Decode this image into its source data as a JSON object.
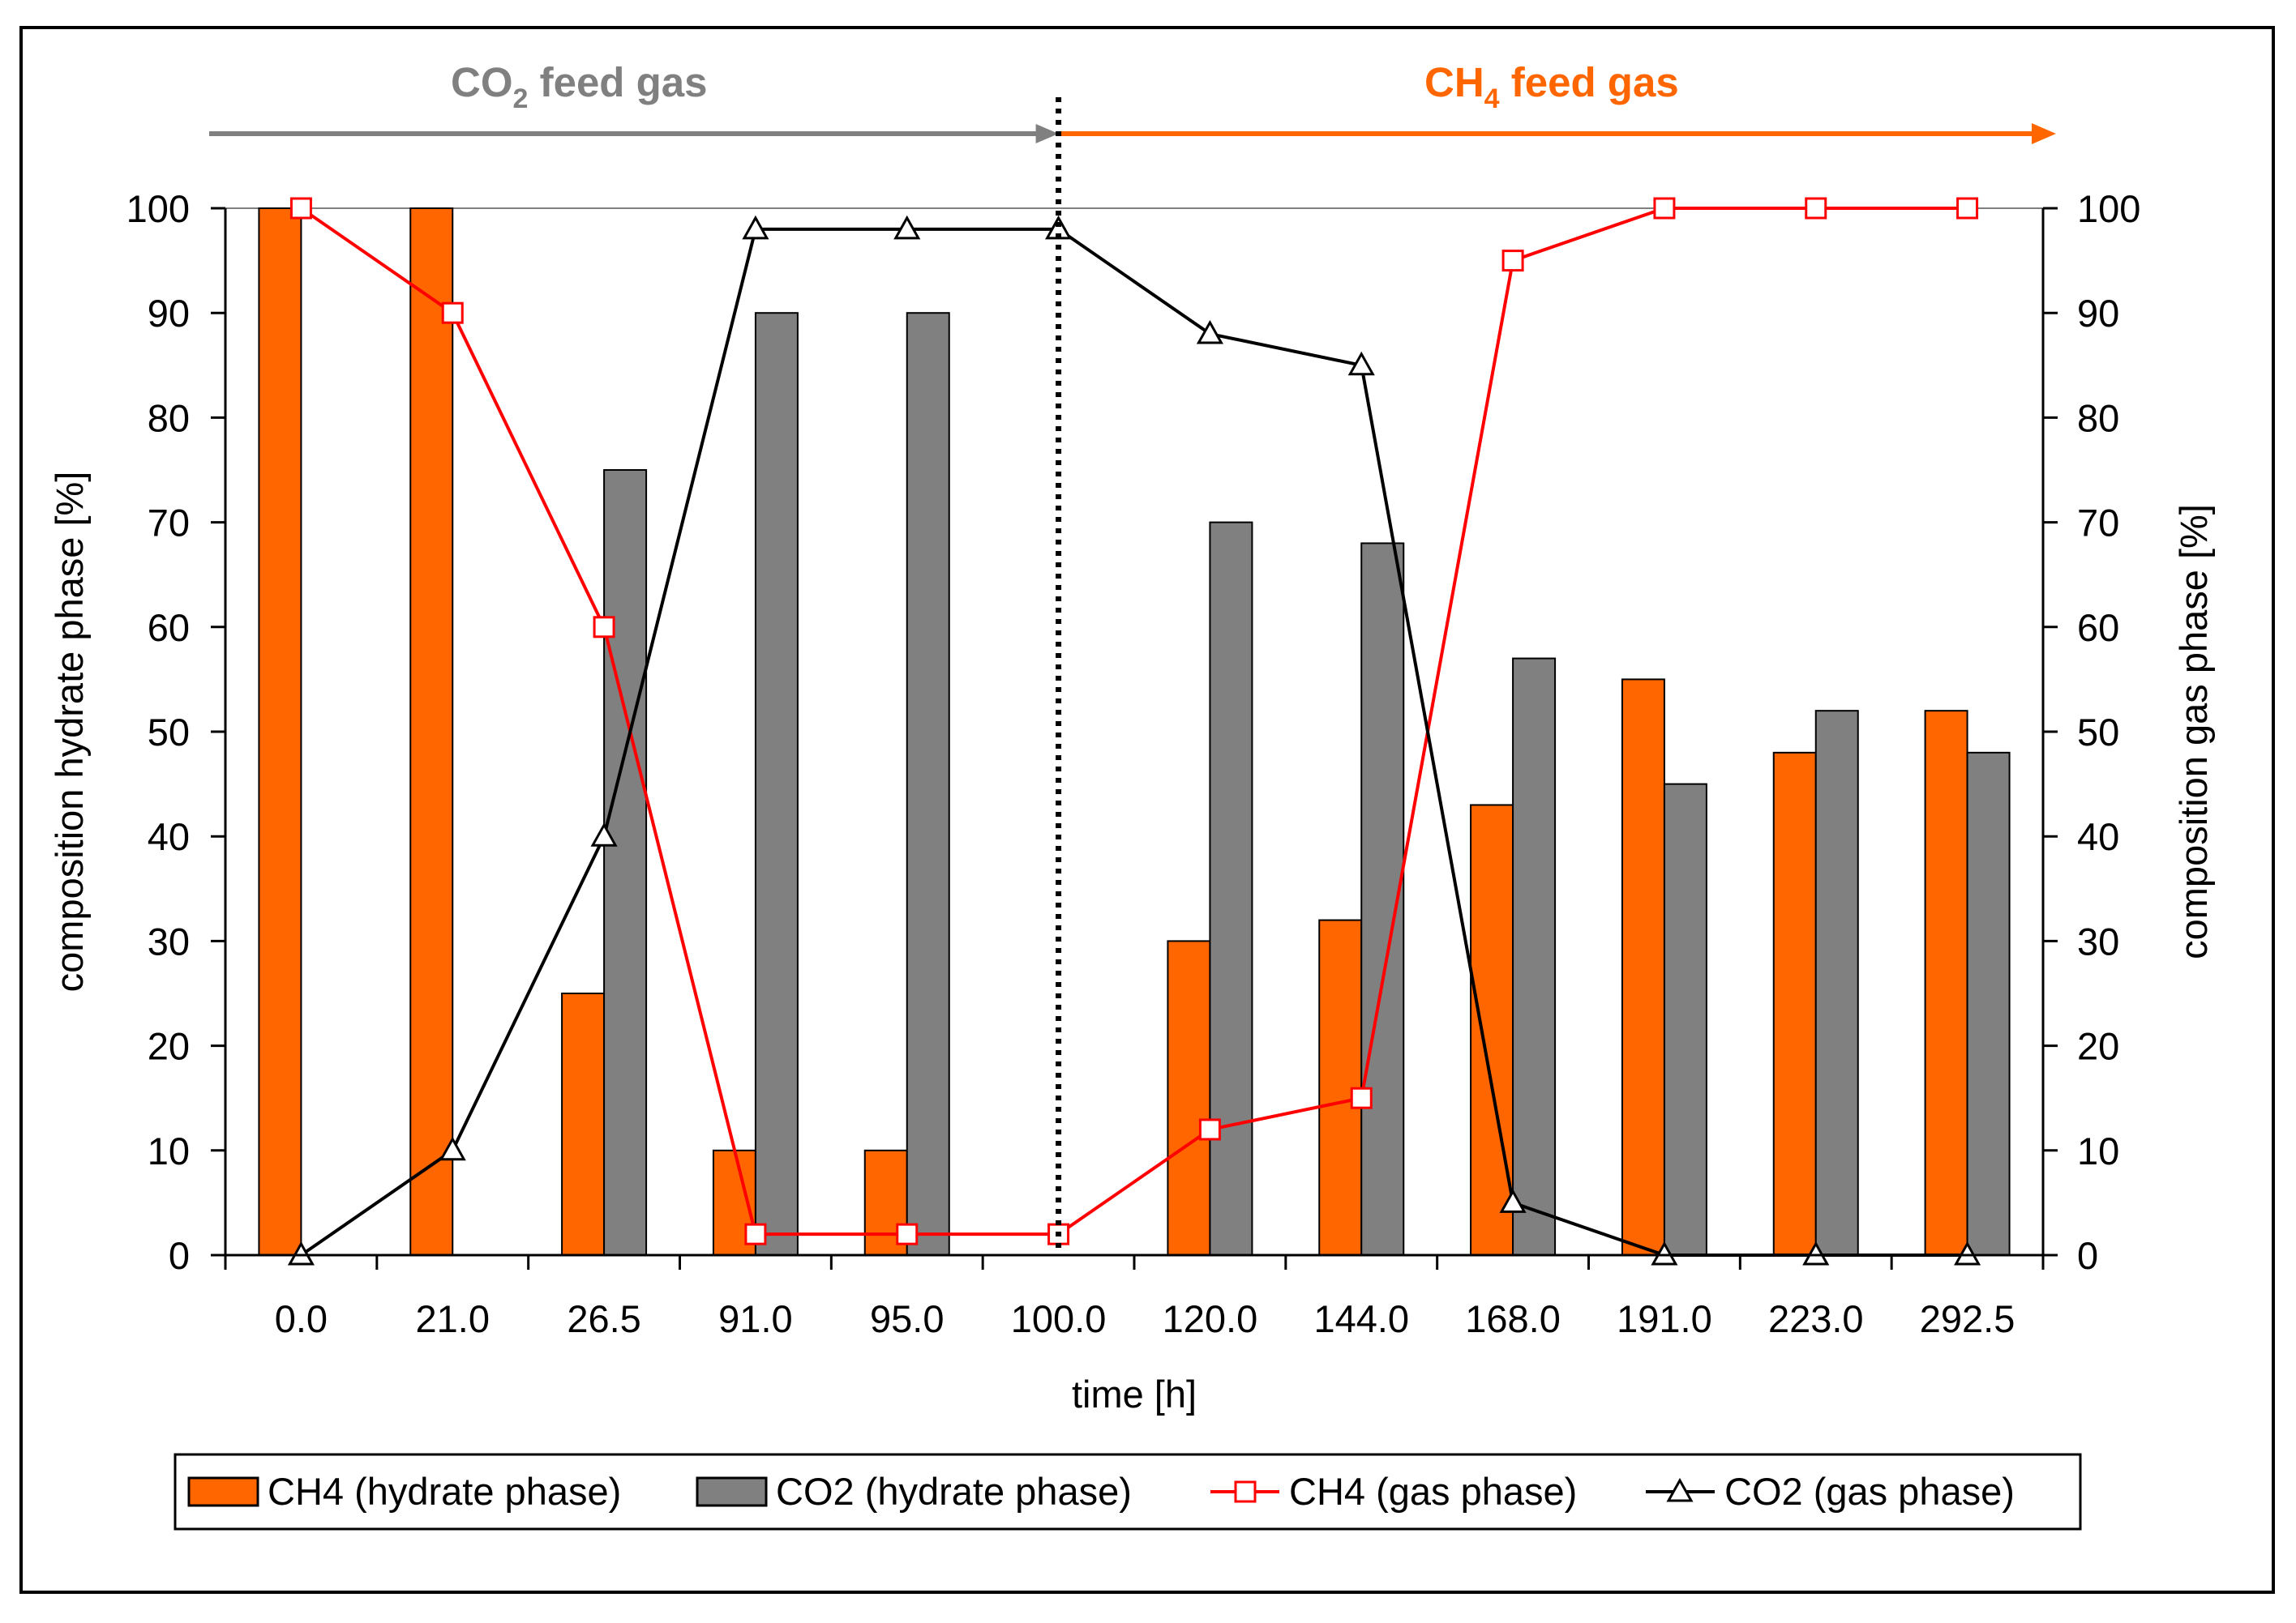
{
  "chart_data": {
    "type": "bar",
    "categories": [
      "0.0",
      "21.0",
      "26.5",
      "91.0",
      "95.0",
      "100.0",
      "120.0",
      "144.0",
      "168.0",
      "191.0",
      "223.0",
      "292.5"
    ],
    "series": [
      {
        "name": "CH4 (hydrate phase)",
        "kind": "bar",
        "axis": "left",
        "color": "#ff6600",
        "values": [
          100,
          100,
          25,
          10,
          10,
          null,
          30,
          32,
          43,
          55,
          48,
          52
        ]
      },
      {
        "name": "CO2 (hydrate phase)",
        "kind": "bar",
        "axis": "left",
        "color": "#808080",
        "values": [
          null,
          null,
          75,
          90,
          90,
          null,
          70,
          68,
          57,
          45,
          52,
          48
        ]
      },
      {
        "name": "CH4 (gas phase)",
        "kind": "line",
        "marker": "square",
        "axis": "right",
        "color": "#ff0000",
        "values": [
          100,
          90,
          60,
          2,
          2,
          2,
          12,
          15,
          95,
          100,
          100,
          100
        ]
      },
      {
        "name": "CO2 (gas phase)",
        "kind": "line",
        "marker": "triangle",
        "axis": "right",
        "color": "#000000",
        "values": [
          0,
          10,
          40,
          98,
          98,
          98,
          88,
          85,
          5,
          0,
          0,
          0
        ]
      }
    ],
    "xlabel": "time [h]",
    "ylabel": "composition hydrate phase [%]",
    "y2label": "composition gas phase [%]",
    "ylim": [
      0,
      100
    ],
    "y2lim": [
      0,
      100
    ],
    "yticks": [
      0,
      10,
      20,
      30,
      40,
      50,
      60,
      70,
      80,
      90,
      100
    ],
    "legend_position": "bottom",
    "annotations": {
      "co2_feed": {
        "formula_main": "CO",
        "formula_sub": "2",
        "suffix": " feed gas",
        "color": "#808080"
      },
      "ch4_feed": {
        "formula_main": "CH",
        "formula_sub": "4",
        "suffix": " feed gas",
        "color": "#ff6600"
      },
      "switch_time": "100.0"
    }
  }
}
